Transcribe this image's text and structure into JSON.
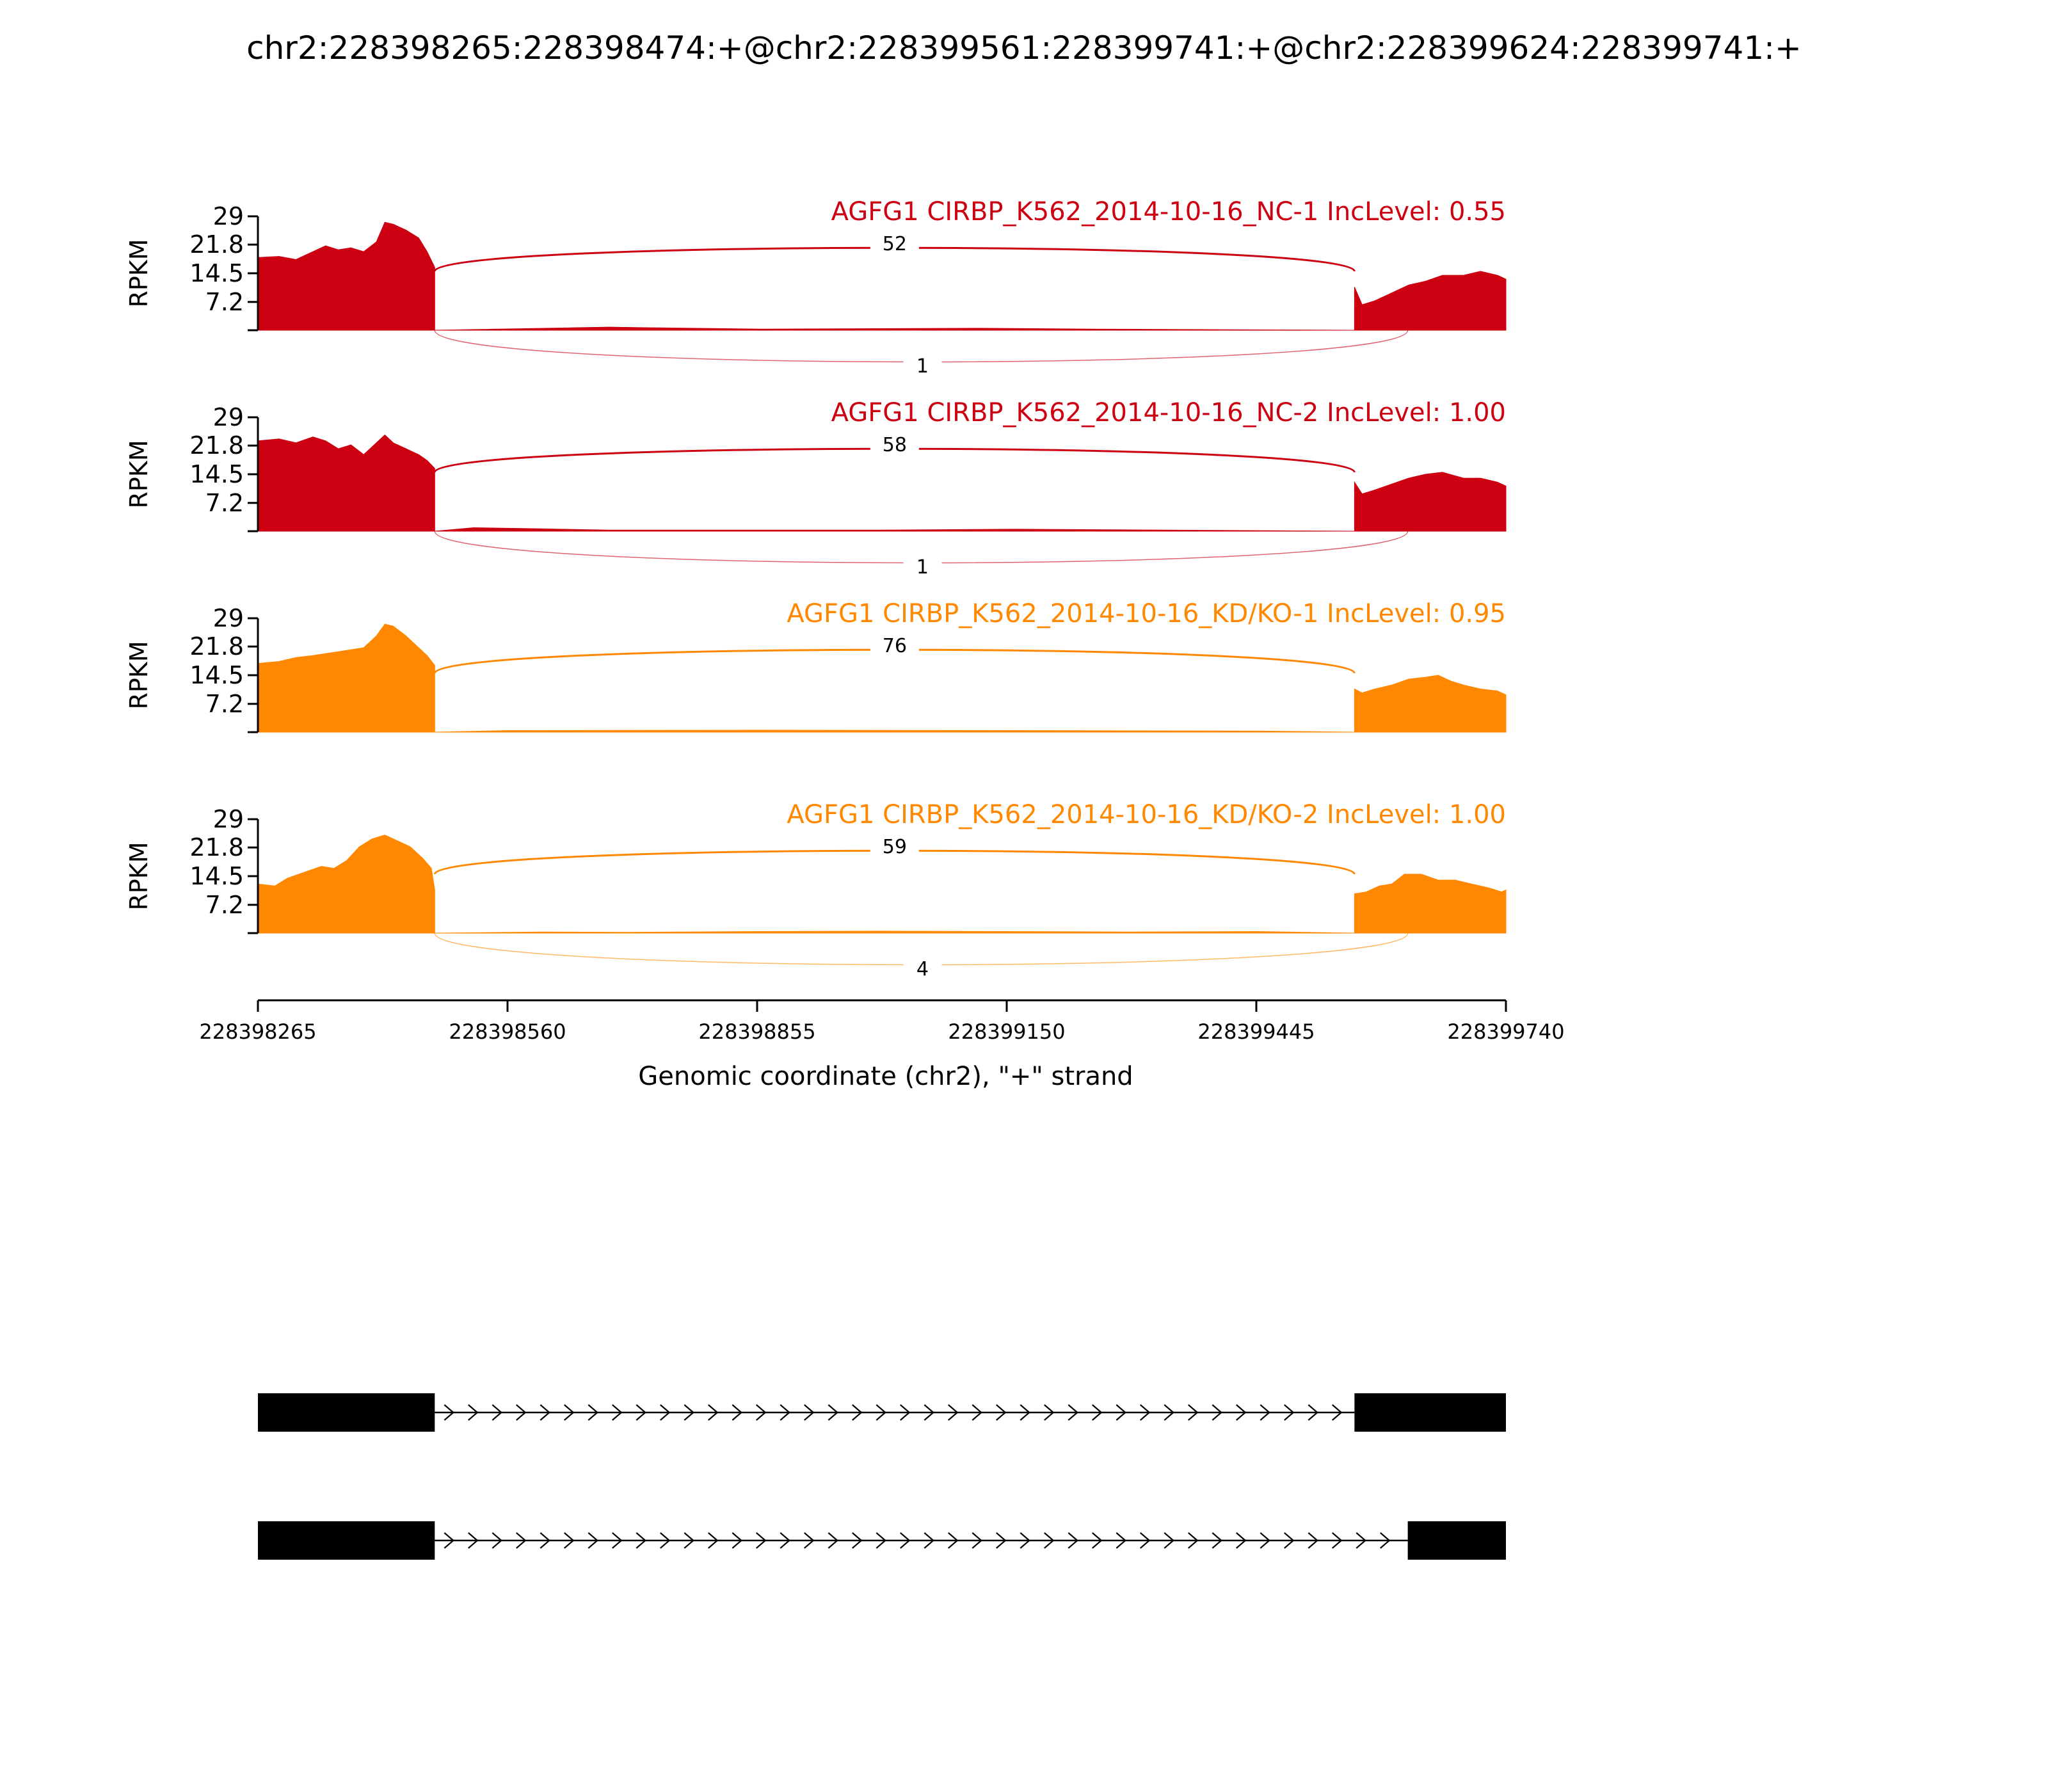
{
  "chart_data": {
    "type": "area",
    "title": "chr2:228398265:228398474:+@chr2:228399561:228399741:+@chr2:228399624:228399741:+",
    "ylabel": "RPKM",
    "xlabel": "Genomic coordinate (chr2), \"+\" strand",
    "xlim": [
      228398265,
      228399740
    ],
    "ylim": [
      0,
      29
    ],
    "x_ticks": [
      "228398265",
      "228398560",
      "228398855",
      "228399150",
      "228399445",
      "228399740"
    ],
    "y_ticks": [
      "29",
      "21.8",
      "14.5",
      "7.2"
    ],
    "exons": {
      "exon1": [
        228398265,
        228398474
      ],
      "exon2_long": [
        228399561,
        228399741
      ],
      "exon2_short": [
        228399624,
        228399741
      ]
    },
    "series": [
      {
        "name": "AGFG1 CIRBP_K562_2014-10-16_NC-1 IncLevel: 0.55",
        "color": "#cc0011",
        "inclusion_junction": 52,
        "exclusion_junction": "1",
        "exon1_profile": [
          [
            228398265,
            18.5
          ],
          [
            228398290,
            18.8
          ],
          [
            228398310,
            18.0
          ],
          [
            228398330,
            20.0
          ],
          [
            228398345,
            21.5
          ],
          [
            228398360,
            20.5
          ],
          [
            228398375,
            21.0
          ],
          [
            228398390,
            20.0
          ],
          [
            228398405,
            22.5
          ],
          [
            228398415,
            27.5
          ],
          [
            228398425,
            27.0
          ],
          [
            228398440,
            25.5
          ],
          [
            228398455,
            23.5
          ],
          [
            228398465,
            20.0
          ],
          [
            228398474,
            16.0
          ]
        ],
        "exon2_profile": [
          [
            228399561,
            11.0
          ],
          [
            228399570,
            6.5
          ],
          [
            228399585,
            7.5
          ],
          [
            228399605,
            9.5
          ],
          [
            228399625,
            11.5
          ],
          [
            228399645,
            12.5
          ],
          [
            228399665,
            14.0
          ],
          [
            228399690,
            14.0
          ],
          [
            228399710,
            15.0
          ],
          [
            228399730,
            14.0
          ],
          [
            228399740,
            13.0
          ]
        ],
        "intron_profile": [
          [
            228398474,
            0.0
          ],
          [
            228398680,
            0.8
          ],
          [
            228398740,
            0.6
          ],
          [
            228398860,
            0.3
          ],
          [
            228399120,
            0.5
          ],
          [
            228399250,
            0.3
          ],
          [
            228399561,
            0.0
          ]
        ]
      },
      {
        "name": "AGFG1 CIRBP_K562_2014-10-16_NC-2 IncLevel: 1.00",
        "color": "#cc0011",
        "inclusion_junction": 58,
        "exclusion_junction": "1",
        "exon1_profile": [
          [
            228398265,
            23.0
          ],
          [
            228398290,
            23.5
          ],
          [
            228398310,
            22.5
          ],
          [
            228398330,
            24.0
          ],
          [
            228398345,
            23.0
          ],
          [
            228398360,
            21.0
          ],
          [
            228398375,
            22.0
          ],
          [
            228398390,
            19.5
          ],
          [
            228398405,
            22.5
          ],
          [
            228398415,
            24.5
          ],
          [
            228398425,
            22.5
          ],
          [
            228398440,
            21.0
          ],
          [
            228398455,
            19.5
          ],
          [
            228398465,
            18.0
          ],
          [
            228398474,
            16.0
          ]
        ],
        "exon2_profile": [
          [
            228399561,
            12.5
          ],
          [
            228399570,
            9.5
          ],
          [
            228399585,
            10.5
          ],
          [
            228399605,
            12.0
          ],
          [
            228399625,
            13.5
          ],
          [
            228399645,
            14.5
          ],
          [
            228399665,
            15.0
          ],
          [
            228399690,
            13.5
          ],
          [
            228399710,
            13.5
          ],
          [
            228399730,
            12.5
          ],
          [
            228399740,
            11.5
          ]
        ],
        "intron_profile": [
          [
            228398474,
            0.0
          ],
          [
            228398520,
            0.9
          ],
          [
            228398600,
            0.6
          ],
          [
            228398680,
            0.3
          ],
          [
            228399000,
            0.3
          ],
          [
            228399160,
            0.5
          ],
          [
            228399561,
            0.0
          ]
        ]
      },
      {
        "name": "AGFG1 CIRBP_K562_2014-10-16_KD/KO-1 IncLevel: 0.95",
        "color": "#ff8800",
        "inclusion_junction": 76,
        "exclusion_junction": "",
        "exon1_profile": [
          [
            228398265,
            17.5
          ],
          [
            228398290,
            18.0
          ],
          [
            228398310,
            19.0
          ],
          [
            228398330,
            19.5
          ],
          [
            228398345,
            20.0
          ],
          [
            228398360,
            20.5
          ],
          [
            228398375,
            21.0
          ],
          [
            228398390,
            21.5
          ],
          [
            228398405,
            24.5
          ],
          [
            228398415,
            27.5
          ],
          [
            228398425,
            27.0
          ],
          [
            228398440,
            24.5
          ],
          [
            228398455,
            21.5
          ],
          [
            228398465,
            19.5
          ],
          [
            228398474,
            17.0
          ]
        ],
        "exon2_profile": [
          [
            228399561,
            11.0
          ],
          [
            228399570,
            10.0
          ],
          [
            228399585,
            11.0
          ],
          [
            228399605,
            12.0
          ],
          [
            228399625,
            13.5
          ],
          [
            228399645,
            14.0
          ],
          [
            228399660,
            14.5
          ],
          [
            228399675,
            13.0
          ],
          [
            228399690,
            12.0
          ],
          [
            228399710,
            11.0
          ],
          [
            228399730,
            10.5
          ],
          [
            228399740,
            9.5
          ]
        ],
        "intron_profile": [
          [
            228398474,
            0.0
          ],
          [
            228398560,
            0.4
          ],
          [
            228398855,
            0.5
          ],
          [
            228399150,
            0.4
          ],
          [
            228399445,
            0.3
          ],
          [
            228399561,
            0.0
          ]
        ]
      },
      {
        "name": "AGFG1 CIRBP_K562_2014-10-16_KD/KO-2 IncLevel: 1.00",
        "color": "#ff8800",
        "inclusion_junction": 59,
        "exclusion_junction": "4",
        "exon1_profile": [
          [
            228398265,
            12.5
          ],
          [
            228398285,
            12.0
          ],
          [
            228398300,
            14.0
          ],
          [
            228398320,
            15.5
          ],
          [
            228398340,
            17.0
          ],
          [
            228398355,
            16.5
          ],
          [
            228398370,
            18.5
          ],
          [
            228398385,
            22.0
          ],
          [
            228398400,
            24.0
          ],
          [
            228398415,
            25.0
          ],
          [
            228398430,
            23.5
          ],
          [
            228398445,
            22.0
          ],
          [
            228398460,
            19.0
          ],
          [
            228398470,
            16.5
          ],
          [
            228398474,
            11.0
          ]
        ],
        "exon2_profile": [
          [
            228399561,
            10.0
          ],
          [
            228399575,
            10.5
          ],
          [
            228399590,
            12.0
          ],
          [
            228399605,
            12.5
          ],
          [
            228399620,
            15.0
          ],
          [
            228399640,
            15.0
          ],
          [
            228399660,
            13.5
          ],
          [
            228399680,
            13.5
          ],
          [
            228399700,
            12.5
          ],
          [
            228399720,
            11.5
          ],
          [
            228399735,
            10.5
          ],
          [
            228399740,
            11.0
          ]
        ],
        "intron_profile": [
          [
            228398474,
            0.0
          ],
          [
            228398600,
            0.3
          ],
          [
            228398700,
            0.2
          ],
          [
            228398855,
            0.4
          ],
          [
            228399000,
            0.5
          ],
          [
            228399300,
            0.3
          ],
          [
            228399445,
            0.4
          ],
          [
            228399561,
            0.0
          ]
        ]
      }
    ]
  }
}
